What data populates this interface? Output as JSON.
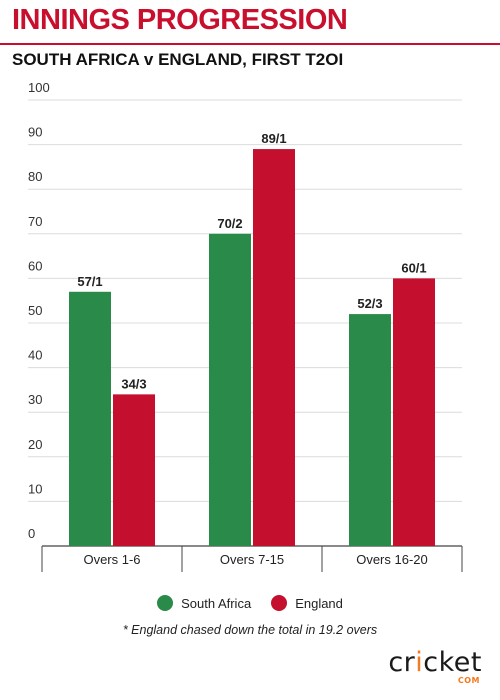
{
  "header": {
    "title": "INNINGS PROGRESSION",
    "subtitle": "SOUTH AFRICA v ENGLAND, FIRST T2OI"
  },
  "colors": {
    "brand_red": "#c8102e",
    "south_africa": "#2a8a4a",
    "england": "#c4102e"
  },
  "chart_data": {
    "type": "bar",
    "categories": [
      "Overs 1-6",
      "Overs 7-15",
      "Overs 16-20"
    ],
    "series": [
      {
        "name": "South Africa",
        "values": [
          57,
          70,
          52
        ],
        "labels": [
          "57/1",
          "70/2",
          "52/3"
        ],
        "color": "#2a8a4a"
      },
      {
        "name": "England",
        "values": [
          34,
          89,
          60
        ],
        "labels": [
          "34/3",
          "89/1",
          "60/1"
        ],
        "color": "#c4102e"
      }
    ],
    "ylim": [
      0,
      100
    ],
    "yticks": [
      0,
      10,
      20,
      30,
      40,
      50,
      60,
      70,
      80,
      90,
      100
    ],
    "grid": true,
    "legend": "bottom"
  },
  "footnote": "* England chased down the total in 19.2 overs",
  "logo": {
    "word_start": "cr",
    "word_dot": "i",
    "word_end": "cket",
    "sub": "COM"
  }
}
